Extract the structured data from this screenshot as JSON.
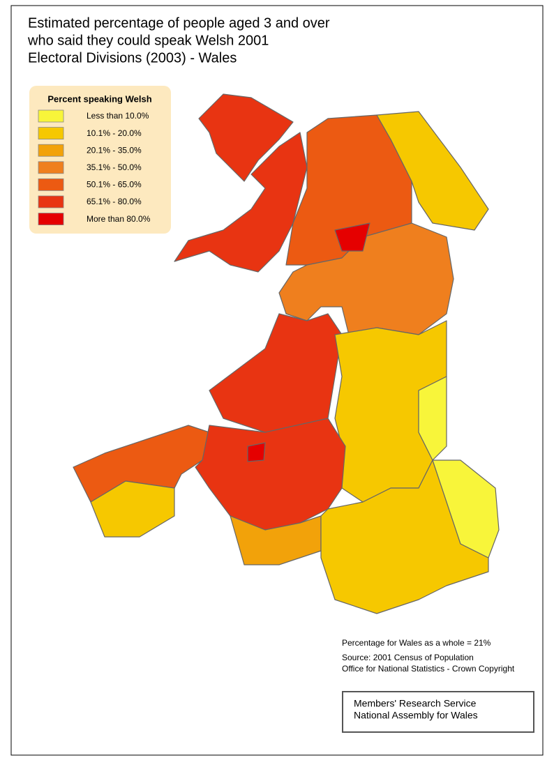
{
  "header": {
    "title_lines": [
      "Estimated percentage of people aged 3 and over",
      "who said they could speak Welsh 2001",
      "Electoral Divisions (2003) - Wales"
    ]
  },
  "legend": {
    "title": "Percent speaking Welsh",
    "items": [
      {
        "label": "Less than 10.0%",
        "color": "#f8f53a"
      },
      {
        "label": "10.1% - 20.0%",
        "color": "#f6c800"
      },
      {
        "label": "20.1% - 35.0%",
        "color": "#f2a20a"
      },
      {
        "label": "35.1% - 50.0%",
        "color": "#ef7f1e"
      },
      {
        "label": "50.1% - 65.0%",
        "color": "#ec5a12"
      },
      {
        "label": "65.1% - 80.0%",
        "color": "#e83412"
      },
      {
        "label": "More than 80.0%",
        "color": "#e50000"
      }
    ]
  },
  "notes": {
    "whole": "Percentage for Wales as a whole = 21%",
    "source_lines": [
      "Source: 2001 Census of Population",
      "Office for National Statistics - Crown Copyright"
    ]
  },
  "credit": {
    "lines": [
      "Members' Research Service",
      "National Assembly for Wales"
    ]
  }
}
